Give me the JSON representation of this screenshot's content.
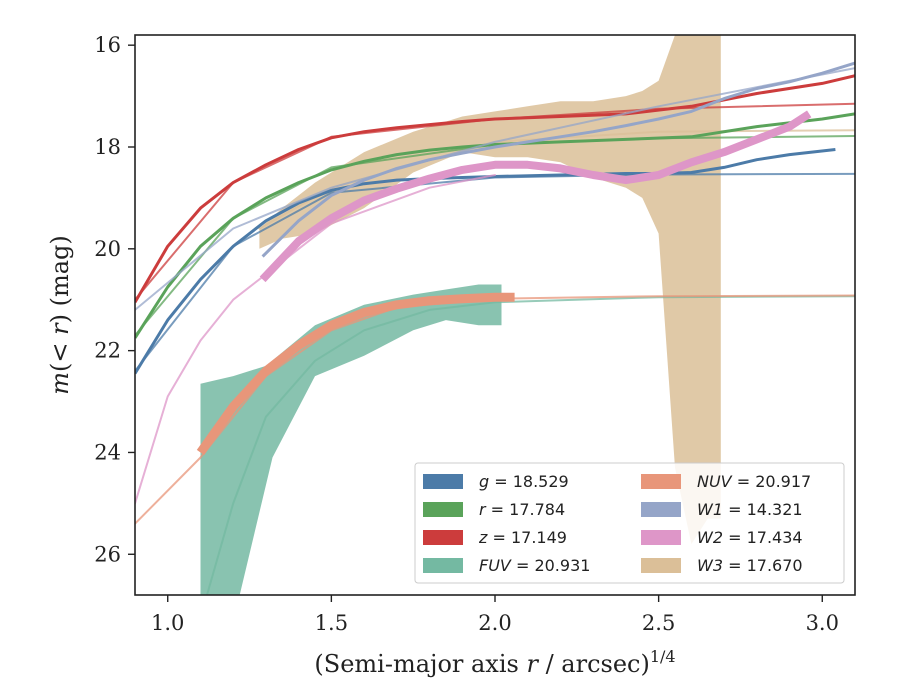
{
  "chart_data": {
    "type": "line",
    "xlabel_prefix": "(Semi-major axis ",
    "xlabel_var": "r",
    "xlabel_suffix": " / arcsec)",
    "xlabel_exp": "1/4",
    "ylabel_main": "m",
    "ylabel_paren_open": "(",
    "ylabel_lt": "< ",
    "ylabel_r": "r",
    "ylabel_paren_close": ") (mag)",
    "xlim": [
      0.9,
      3.1
    ],
    "ylim": [
      26.8,
      15.8
    ],
    "y_inverted": true,
    "xticks": [
      1.0,
      1.5,
      2.0,
      2.5,
      3.0
    ],
    "xtick_labels": [
      "1.0",
      "1.5",
      "2.0",
      "2.5",
      "3.0"
    ],
    "yticks": [
      16,
      18,
      20,
      22,
      24,
      26
    ],
    "ytick_labels": [
      "16",
      "18",
      "20",
      "22",
      "24",
      "26"
    ],
    "grid": false,
    "legend_location": "lower-right",
    "legend": [
      {
        "var": "g",
        "value": "18.529",
        "color": "#4c7ba8",
        "style": "line"
      },
      {
        "var": "r",
        "value": "17.784",
        "color": "#5aa35a",
        "style": "line"
      },
      {
        "var": "z",
        "value": "17.149",
        "color": "#cc3c3c",
        "style": "line"
      },
      {
        "var": "FUV",
        "value": "20.931",
        "color": "#74b9a2",
        "style": "band"
      },
      {
        "var": "NUV",
        "value": "20.917",
        "color": "#e8967a",
        "style": "line"
      },
      {
        "var": "W1",
        "value": "14.321",
        "color": "#95a5c8",
        "style": "line"
      },
      {
        "var": "W2",
        "value": "17.434",
        "color": "#de96c8",
        "style": "line"
      },
      {
        "var": "W3",
        "value": "17.670",
        "color": "#dbbf98",
        "style": "band"
      }
    ],
    "series": [
      {
        "key": "W3",
        "color": "#dbbf98",
        "band_x": [
          1.28,
          1.35,
          1.45,
          1.6,
          1.75,
          1.9,
          2.0,
          2.1,
          2.2,
          2.3,
          2.4,
          2.45,
          2.5,
          2.55,
          2.6,
          2.65,
          2.69,
          2.69,
          2.65,
          2.6,
          2.55,
          2.5,
          2.45,
          2.4,
          2.3,
          2.2,
          2.1,
          2.0,
          1.9,
          1.75,
          1.6,
          1.45,
          1.35,
          1.28
        ],
        "band_y": [
          19.6,
          19.2,
          18.7,
          18.1,
          17.7,
          17.4,
          17.3,
          17.2,
          17.1,
          17.1,
          17.0,
          16.9,
          16.7,
          15.8,
          15.8,
          15.8,
          15.8,
          25.3,
          25.3,
          25.8,
          24.3,
          19.7,
          19.0,
          18.8,
          18.6,
          18.3,
          18.2,
          18.2,
          18.1,
          18.5,
          19.2,
          19.7,
          19.8,
          20.0
        ],
        "model_x": [
          1.28,
          1.5,
          2.0,
          2.5,
          3.1
        ],
        "model_y": [
          19.6,
          18.8,
          17.9,
          17.7,
          17.67
        ]
      },
      {
        "key": "FUV",
        "color": "#74b9a2",
        "band_x": [
          1.1,
          1.2,
          1.3,
          1.45,
          1.6,
          1.75,
          1.85,
          1.95,
          2.02,
          2.02,
          1.95,
          1.85,
          1.75,
          1.6,
          1.45,
          1.32,
          1.22,
          1.1
        ],
        "band_y": [
          22.65,
          22.5,
          22.3,
          21.5,
          21.1,
          20.9,
          20.8,
          20.7,
          20.7,
          21.5,
          21.5,
          21.4,
          21.6,
          22.1,
          22.5,
          24.1,
          26.8,
          26.8
        ],
        "model_x": [
          1.12,
          1.2,
          1.3,
          1.45,
          1.6,
          1.8,
          2.0,
          2.5,
          3.1
        ],
        "model_y": [
          26.8,
          25.0,
          23.3,
          22.2,
          21.6,
          21.2,
          21.05,
          20.95,
          20.93
        ]
      },
      {
        "key": "NUV",
        "color": "#e8967a",
        "x": [
          1.1,
          1.2,
          1.3,
          1.4,
          1.5,
          1.6,
          1.7,
          1.8,
          1.9,
          2.0,
          2.06
        ],
        "y": [
          24.0,
          23.1,
          22.4,
          21.9,
          21.5,
          21.25,
          21.1,
          21.02,
          20.98,
          20.95,
          20.95
        ],
        "model_x": [
          0.9,
          1.1,
          1.3,
          1.5,
          1.7,
          2.0,
          2.5,
          3.1
        ],
        "model_y": [
          25.4,
          24.1,
          22.5,
          21.6,
          21.15,
          20.98,
          20.93,
          20.917
        ]
      },
      {
        "key": "g",
        "color": "#4c7ba8",
        "x": [
          0.9,
          1.0,
          1.1,
          1.2,
          1.3,
          1.4,
          1.5,
          1.6,
          1.7,
          1.8,
          1.9,
          2.0,
          2.2,
          2.4,
          2.5,
          2.6,
          2.7,
          2.8,
          2.9,
          3.04
        ],
        "y": [
          22.45,
          21.4,
          20.6,
          19.95,
          19.45,
          19.1,
          18.85,
          18.72,
          18.65,
          18.62,
          18.6,
          18.58,
          18.55,
          18.52,
          18.52,
          18.5,
          18.4,
          18.25,
          18.15,
          18.05
        ],
        "model_x": [
          0.9,
          1.2,
          1.5,
          2.0,
          2.5,
          3.1
        ],
        "model_y": [
          22.4,
          19.95,
          18.9,
          18.6,
          18.54,
          18.529
        ]
      },
      {
        "key": "r",
        "color": "#5aa35a",
        "x": [
          0.9,
          1.0,
          1.1,
          1.2,
          1.3,
          1.4,
          1.5,
          1.6,
          1.7,
          1.8,
          1.9,
          2.0,
          2.2,
          2.4,
          2.6,
          2.8,
          3.0,
          3.1
        ],
        "y": [
          21.75,
          20.75,
          19.95,
          19.4,
          19.0,
          18.7,
          18.45,
          18.28,
          18.15,
          18.06,
          18.0,
          17.95,
          17.9,
          17.85,
          17.8,
          17.6,
          17.45,
          17.35
        ],
        "model_x": [
          0.9,
          1.2,
          1.5,
          2.0,
          2.5,
          3.1
        ],
        "model_y": [
          21.7,
          19.4,
          18.4,
          17.95,
          17.83,
          17.784
        ]
      },
      {
        "key": "z",
        "color": "#cc3c3c",
        "x": [
          0.9,
          1.0,
          1.1,
          1.2,
          1.3,
          1.4,
          1.5,
          1.6,
          1.7,
          1.8,
          1.9,
          2.0,
          2.2,
          2.4,
          2.6,
          2.8,
          3.0,
          3.1
        ],
        "y": [
          21.05,
          19.95,
          19.2,
          18.7,
          18.35,
          18.05,
          17.82,
          17.7,
          17.62,
          17.56,
          17.5,
          17.45,
          17.4,
          17.35,
          17.2,
          16.95,
          16.75,
          16.6
        ],
        "model_x": [
          0.9,
          1.2,
          1.5,
          2.0,
          2.5,
          3.1
        ],
        "model_y": [
          21.0,
          18.7,
          17.8,
          17.45,
          17.25,
          17.149
        ]
      },
      {
        "key": "W1",
        "color": "#95a5c8",
        "x": [
          1.29,
          1.4,
          1.5,
          1.6,
          1.7,
          1.8,
          1.9,
          2.0,
          2.1,
          2.2,
          2.3,
          2.4,
          2.5,
          2.6,
          2.7,
          2.8,
          2.9,
          3.0,
          3.1
        ],
        "y": [
          20.15,
          19.45,
          18.95,
          18.65,
          18.42,
          18.25,
          18.12,
          18.0,
          17.9,
          17.8,
          17.7,
          17.58,
          17.45,
          17.3,
          17.05,
          16.85,
          16.72,
          16.55,
          16.35
        ],
        "model_x": [
          0.9,
          1.2,
          1.5,
          2.0,
          2.5,
          3.1
        ],
        "model_y": [
          21.2,
          19.6,
          18.8,
          17.9,
          17.2,
          16.45
        ]
      },
      {
        "key": "W2",
        "color": "#de96c8",
        "x": [
          1.29,
          1.4,
          1.5,
          1.6,
          1.7,
          1.8,
          1.9,
          2.0,
          2.1,
          2.2,
          2.3,
          2.4,
          2.5,
          2.6,
          2.7,
          2.8,
          2.9,
          2.96
        ],
        "y": [
          20.6,
          19.85,
          19.4,
          19.05,
          18.82,
          18.62,
          18.45,
          18.35,
          18.35,
          18.42,
          18.55,
          18.65,
          18.55,
          18.3,
          18.1,
          17.85,
          17.6,
          17.35
        ],
        "model_x": [
          0.9,
          1.0,
          1.1,
          1.2,
          1.3,
          1.5,
          1.8,
          2.0
        ],
        "model_y": [
          25.0,
          22.9,
          21.8,
          21.0,
          20.5,
          19.5,
          18.8,
          18.55
        ]
      }
    ]
  }
}
